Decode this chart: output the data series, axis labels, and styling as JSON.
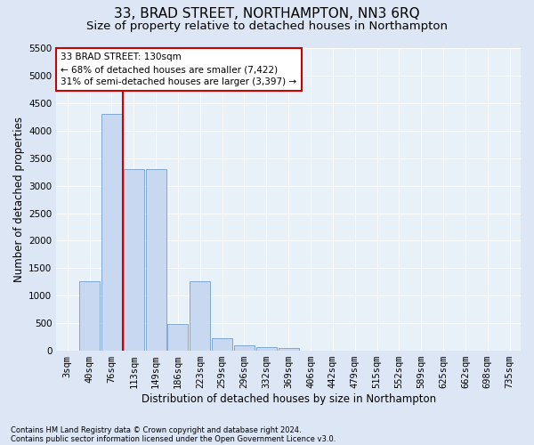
{
  "title": "33, BRAD STREET, NORTHAMPTON, NN3 6RQ",
  "subtitle": "Size of property relative to detached houses in Northampton",
  "xlabel": "Distribution of detached houses by size in Northampton",
  "ylabel": "Number of detached properties",
  "footnote1": "Contains HM Land Registry data © Crown copyright and database right 2024.",
  "footnote2": "Contains public sector information licensed under the Open Government Licence v3.0.",
  "bar_labels": [
    "3sqm",
    "40sqm",
    "76sqm",
    "113sqm",
    "149sqm",
    "186sqm",
    "223sqm",
    "259sqm",
    "296sqm",
    "332sqm",
    "369sqm",
    "406sqm",
    "442sqm",
    "479sqm",
    "515sqm",
    "552sqm",
    "589sqm",
    "625sqm",
    "662sqm",
    "698sqm",
    "735sqm"
  ],
  "bar_values": [
    0,
    1260,
    4300,
    3300,
    3300,
    490,
    1260,
    220,
    100,
    60,
    50,
    0,
    0,
    0,
    0,
    0,
    0,
    0,
    0,
    0,
    0
  ],
  "bar_color": "#c8d8f0",
  "bar_edge_color": "#6090c0",
  "vline_x_pos": 2.5,
  "vline_color": "#cc0000",
  "annotation_text": "33 BRAD STREET: 130sqm\n← 68% of detached houses are smaller (7,422)\n31% of semi-detached houses are larger (3,397) →",
  "annotation_box_color": "#ffffff",
  "annotation_box_edge": "#cc0000",
  "ylim": [
    0,
    5500
  ],
  "yticks": [
    0,
    500,
    1000,
    1500,
    2000,
    2500,
    3000,
    3500,
    4000,
    4500,
    5000,
    5500
  ],
  "bg_color": "#dce6f5",
  "plot_bg_color": "#e8f0f8",
  "title_fontsize": 11,
  "subtitle_fontsize": 9.5,
  "axis_label_fontsize": 8.5,
  "tick_fontsize": 7.5,
  "annotation_fontsize": 7.5,
  "footnote_fontsize": 6.0
}
